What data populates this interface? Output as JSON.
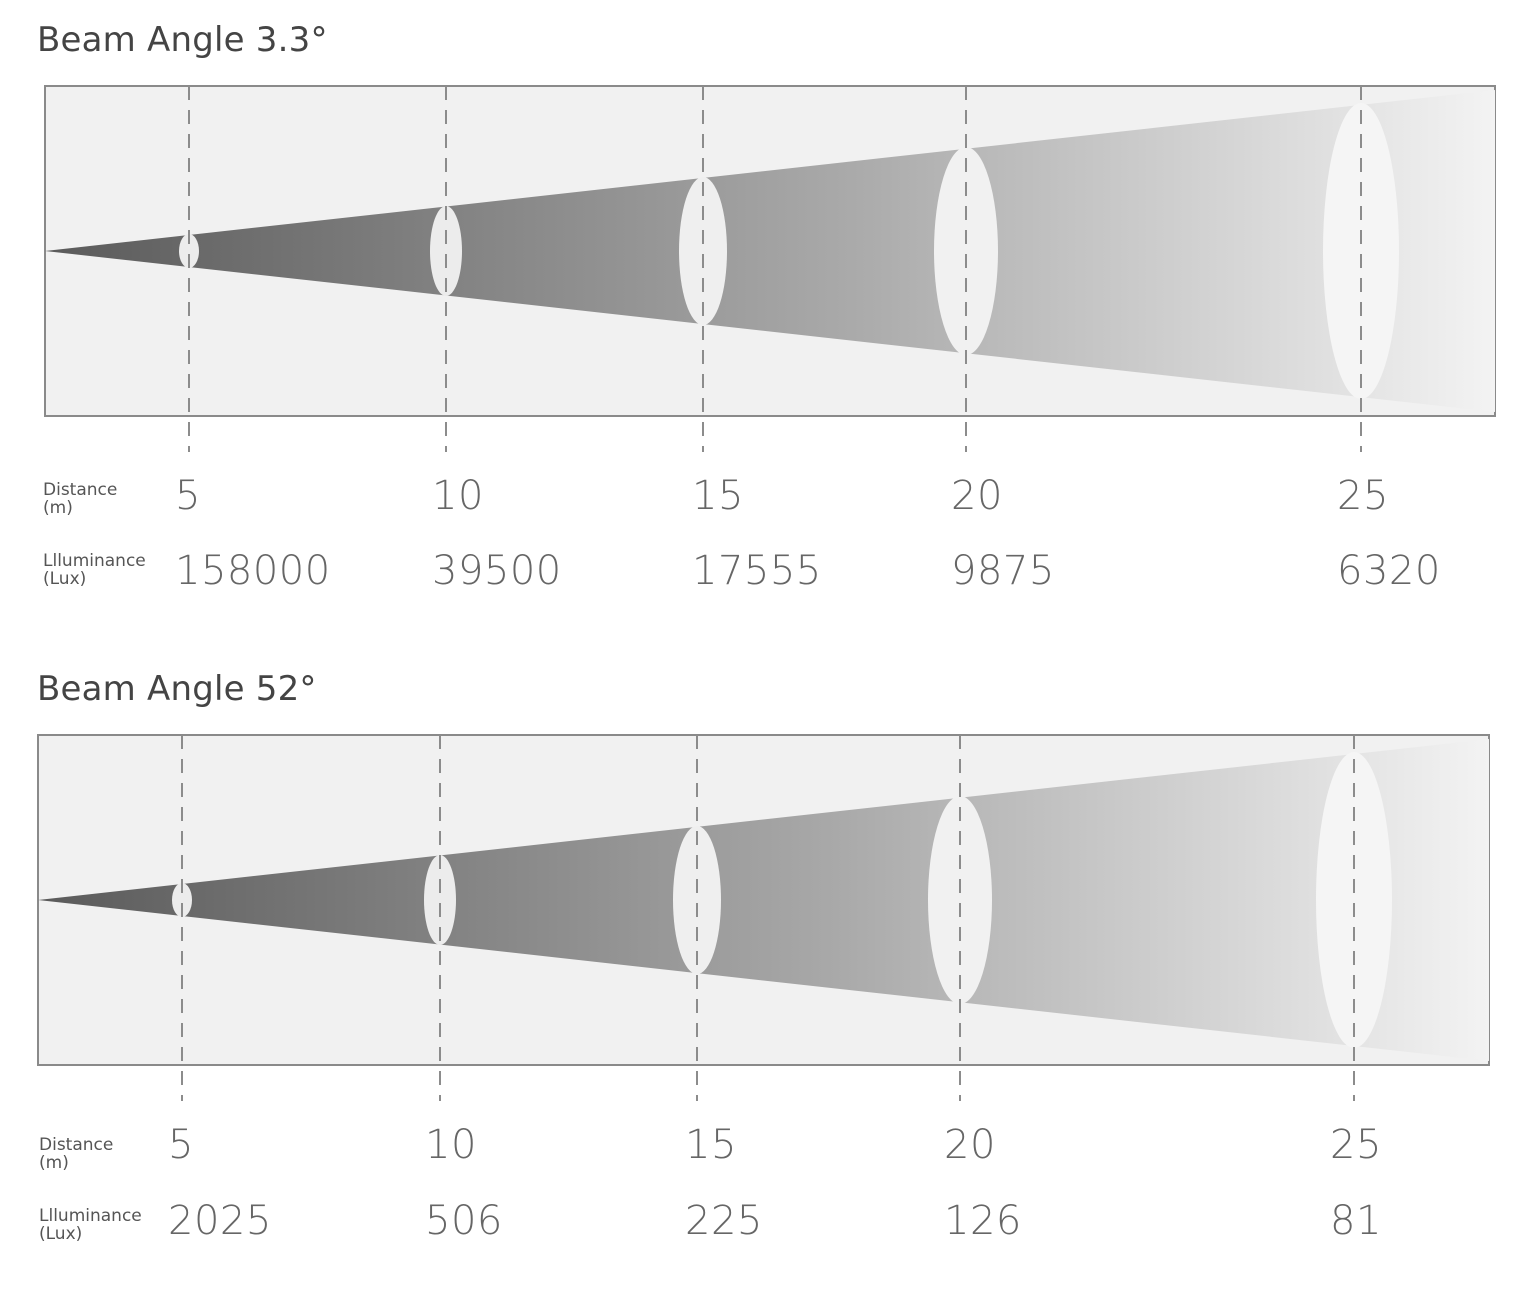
{
  "panels": [
    {
      "title": "Beam Angle 3.3°",
      "distance_label_line1": "Distance",
      "distance_label_line2": "(m)",
      "illuminance_label_line1": "Llluminance",
      "illuminance_label_line2": "(Lux)",
      "distances": [
        "5",
        "10",
        "15",
        "20",
        "25"
      ],
      "illuminances": [
        "158000",
        "39500",
        "17555",
        "9875",
        "6320"
      ]
    },
    {
      "title": "Beam Angle 52°",
      "distance_label_line1": "Distance",
      "distance_label_line2": "(m)",
      "illuminance_label_line1": "Llluminance",
      "illuminance_label_line2": "(Lux)",
      "distances": [
        "5",
        "10",
        "15",
        "20",
        "25"
      ],
      "illuminances": [
        "2025",
        "506",
        "225",
        "126",
        "81"
      ]
    }
  ],
  "colors": {
    "background": "#f1f1f1",
    "frame": "#8a8a8a",
    "beam_start": "#5a5a5a",
    "beam_end": "#f3f3f3",
    "ellipse": "#ececec",
    "dashed_line": "#8c8c8c"
  }
}
